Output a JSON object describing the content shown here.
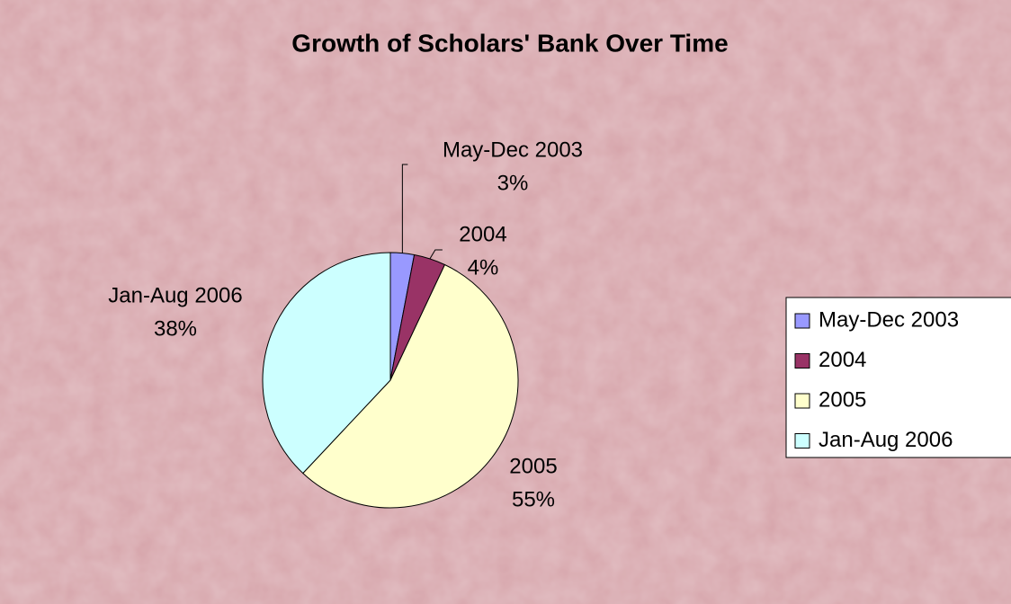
{
  "chart_data": {
    "type": "pie",
    "title": "Growth of Scholars' Bank Over Time",
    "categories": [
      "May-Dec 2003",
      "2004",
      "2005",
      "Jan-Aug 2006"
    ],
    "values": [
      3,
      4,
      55,
      38
    ],
    "value_labels": [
      "3%",
      "4%",
      "55%",
      "38%"
    ],
    "colors": [
      "#9999ff",
      "#993366",
      "#ffffcc",
      "#ccffff"
    ],
    "legend": "right"
  }
}
